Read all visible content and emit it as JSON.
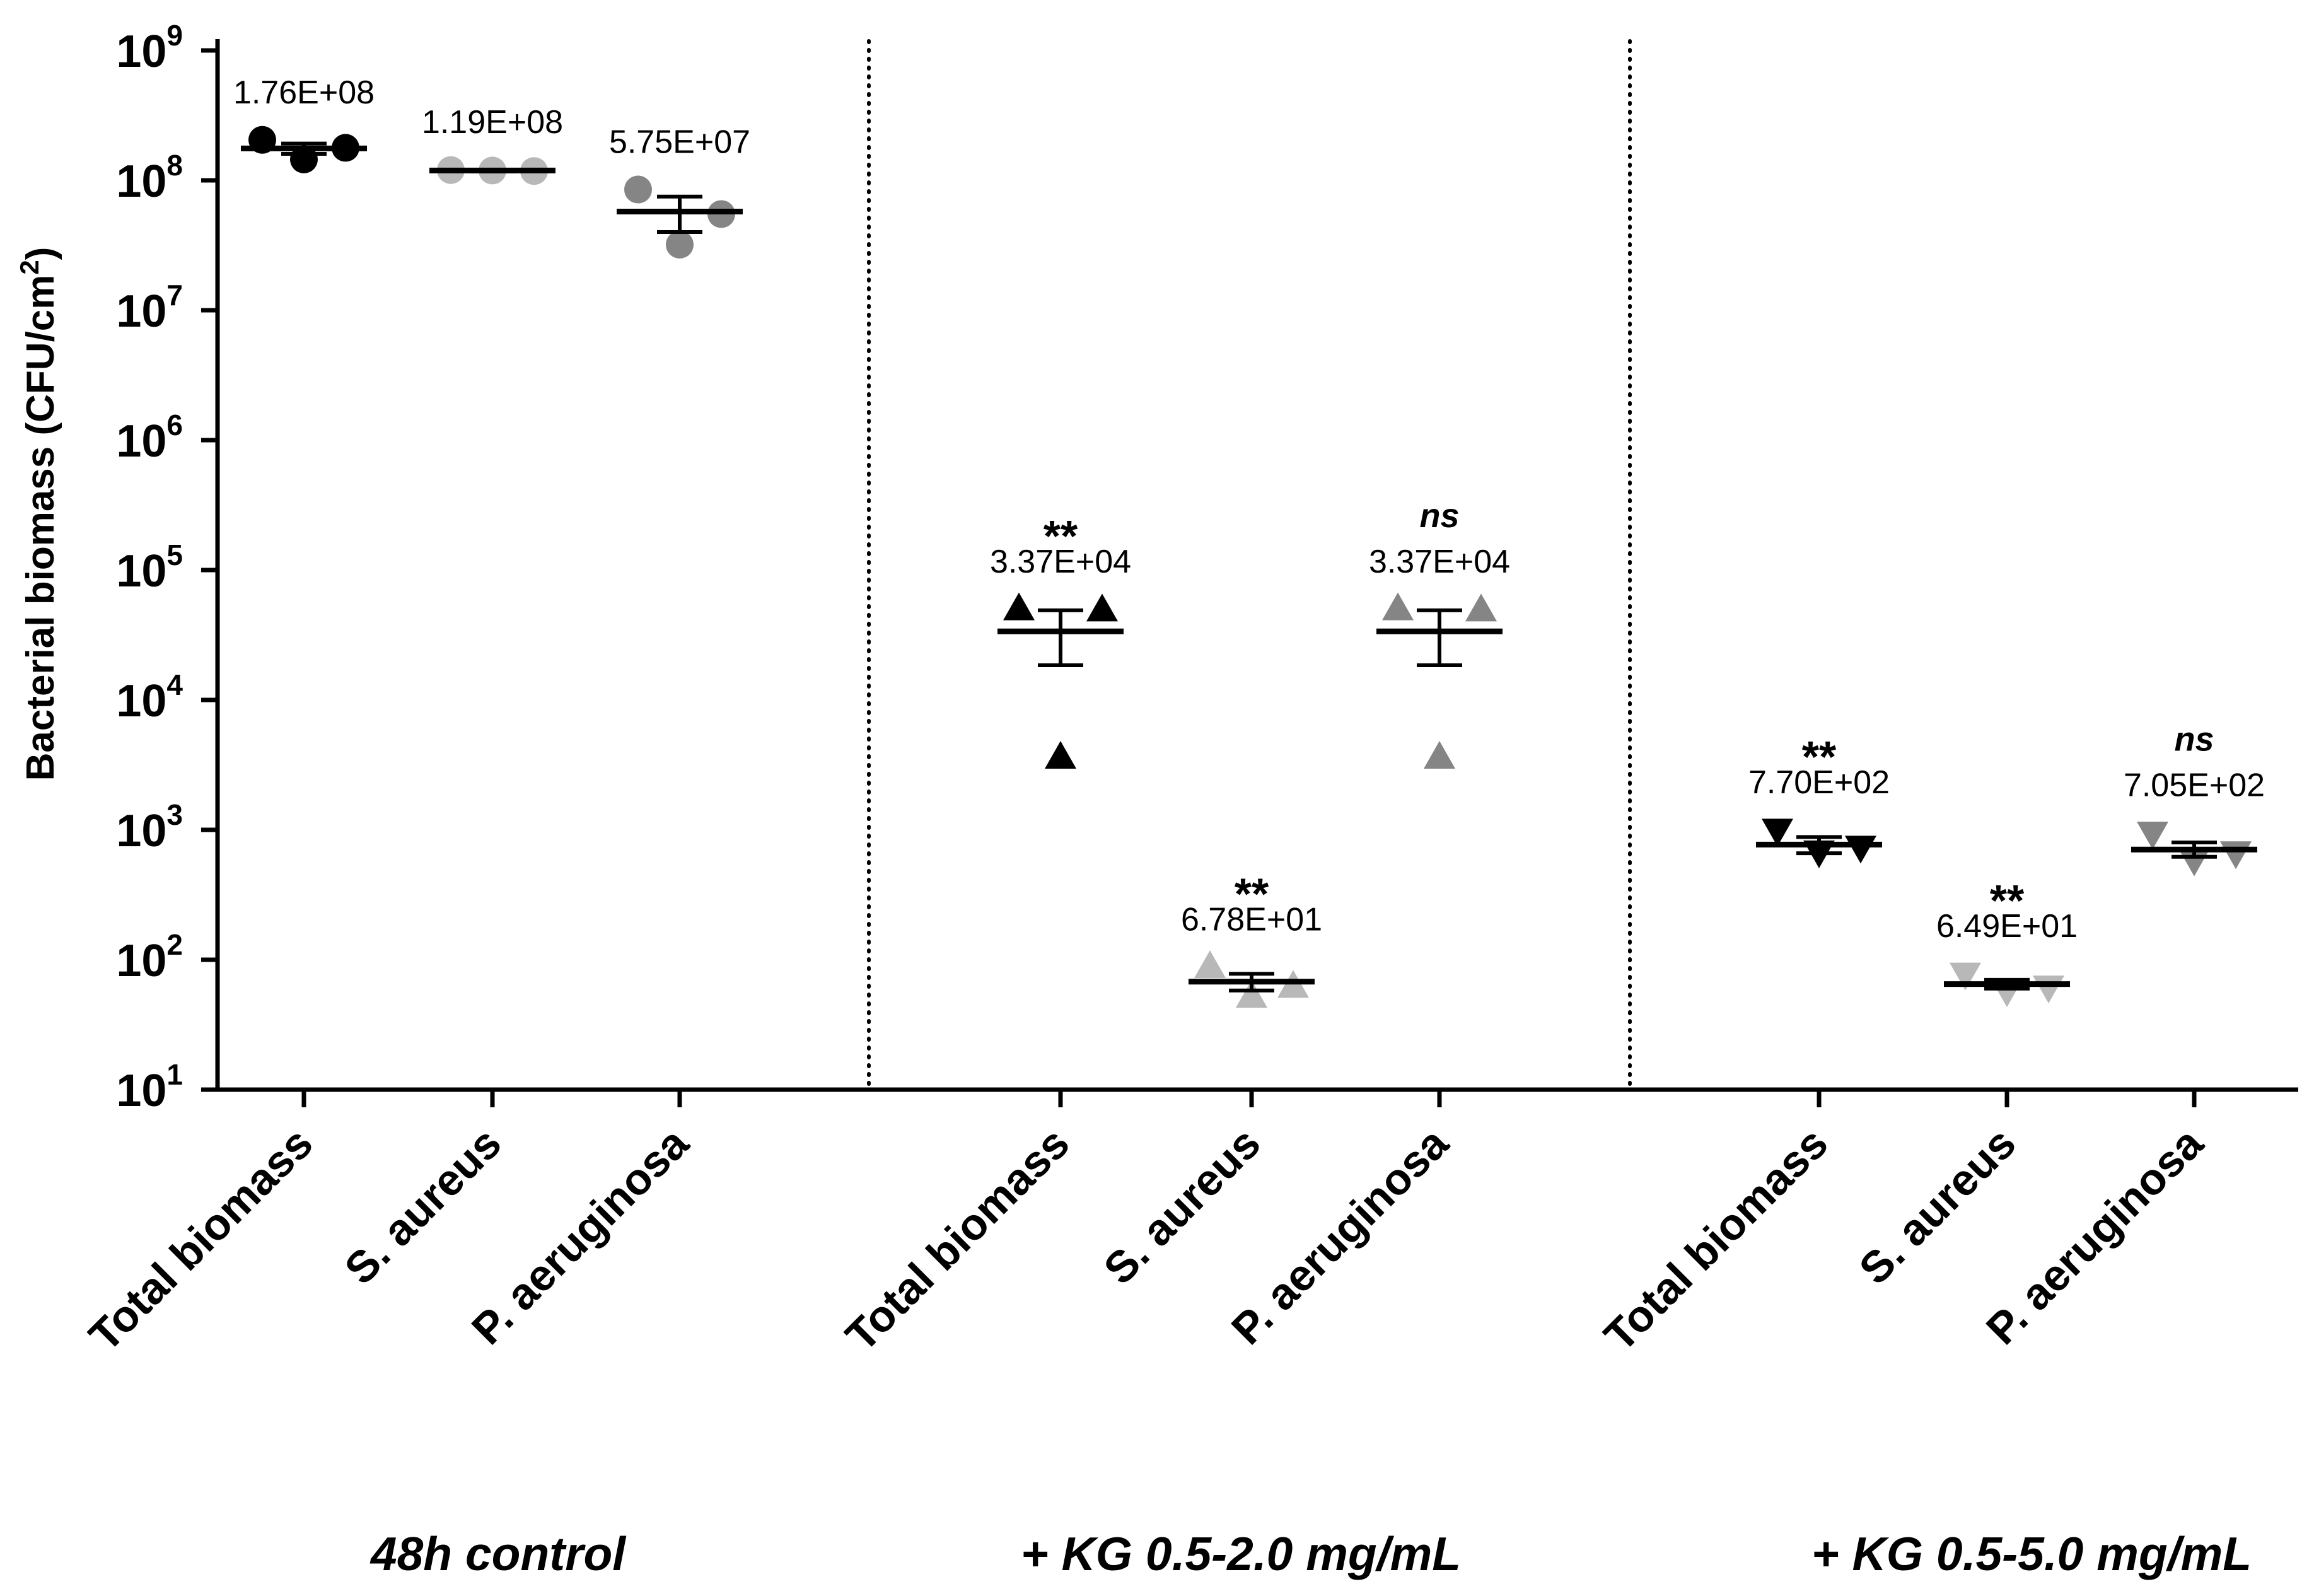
{
  "chart_data": {
    "type": "scatter",
    "title": "",
    "ylabel": "Bacterial biomass (CFU/cm²)",
    "ylabel_main": "Bacterial biomass (CFU/cm",
    "ylabel_sup": "2",
    "ylabel_close": ")",
    "yscale": "log",
    "ylim": [
      10,
      1000000000
    ],
    "yticks": [
      {
        "base": "10",
        "exp": "1",
        "value": 10
      },
      {
        "base": "10",
        "exp": "2",
        "value": 100
      },
      {
        "base": "10",
        "exp": "3",
        "value": 1000
      },
      {
        "base": "10",
        "exp": "4",
        "value": 10000
      },
      {
        "base": "10",
        "exp": "5",
        "value": 100000
      },
      {
        "base": "10",
        "exp": "6",
        "value": 1000000
      },
      {
        "base": "10",
        "exp": "7",
        "value": 10000000
      },
      {
        "base": "10",
        "exp": "8",
        "value": 100000000
      },
      {
        "base": "10",
        "exp": "9",
        "value": 1000000000
      }
    ],
    "groups": [
      {
        "label": "48h control"
      },
      {
        "label": "+ KG 0.5-2.0 mg/mL"
      },
      {
        "label": "+ KG 0.5-5.0 mg/mL"
      }
    ],
    "categories": [
      {
        "group": 0,
        "label": "Total biomass",
        "marker": "circle",
        "color": "#000000",
        "mean": 176000000,
        "mean_label": "1.76E+08",
        "sig": "",
        "err_low": 160000000,
        "err_high": 192000000,
        "points": [
          205000000,
          145000000,
          178000000
        ]
      },
      {
        "group": 0,
        "label": "S. aureus",
        "marker": "circle",
        "color": "#b8b8b8",
        "mean": 119000000,
        "mean_label": "1.19E+08",
        "sig": "",
        "err_low": 117000000,
        "err_high": 121000000,
        "points": [
          120000000,
          119000000,
          118000000
        ]
      },
      {
        "group": 0,
        "label": "P. aeruginosa",
        "marker": "circle",
        "color": "#858585",
        "mean": 57500000,
        "mean_label": "5.75E+07",
        "sig": "",
        "err_low": 40000000,
        "err_high": 75000000,
        "points": [
          85000000,
          32000000,
          55000000
        ]
      },
      {
        "group": 1,
        "label": "Total biomass",
        "marker": "triangle-up",
        "color": "#000000",
        "mean": 33700,
        "mean_label": "3.37E+04",
        "sig": "**",
        "err_low": 18500,
        "err_high": 49000,
        "points": [
          50000,
          3600,
          49000
        ]
      },
      {
        "group": 1,
        "label": "S. aureus",
        "marker": "triangle-up",
        "color": "#b8b8b8",
        "mean": 67.8,
        "mean_label": "6.78E+01",
        "sig": "**",
        "err_low": 58,
        "err_high": 78,
        "points": [
          88,
          52,
          62
        ]
      },
      {
        "group": 1,
        "label": "P. aeruginosa",
        "marker": "triangle-up",
        "color": "#858585",
        "mean": 33700,
        "mean_label": "3.37E+04",
        "sig": "ns",
        "err_low": 18500,
        "err_high": 49000,
        "points": [
          50000,
          3600,
          49000
        ]
      },
      {
        "group": 2,
        "label": "Total biomass",
        "marker": "triangle-down",
        "color": "#000000",
        "mean": 770,
        "mean_label": "7.70E+02",
        "sig": "**",
        "err_low": 660,
        "err_high": 880,
        "points": [
          1000,
          680,
          740
        ]
      },
      {
        "group": 2,
        "label": "S. aureus",
        "marker": "triangle-down",
        "color": "#b8b8b8",
        "mean": 64.9,
        "mean_label": "6.49E+01",
        "sig": "**",
        "err_low": 60,
        "err_high": 70,
        "points": [
          78,
          58,
          62
        ]
      },
      {
        "group": 2,
        "label": "P. aeruginosa",
        "marker": "triangle-down",
        "color": "#858585",
        "mean": 705,
        "mean_label": "7.05E+02",
        "sig": "ns",
        "err_low": 620,
        "err_high": 800,
        "points": [
          950,
          590,
          670
        ]
      }
    ]
  }
}
